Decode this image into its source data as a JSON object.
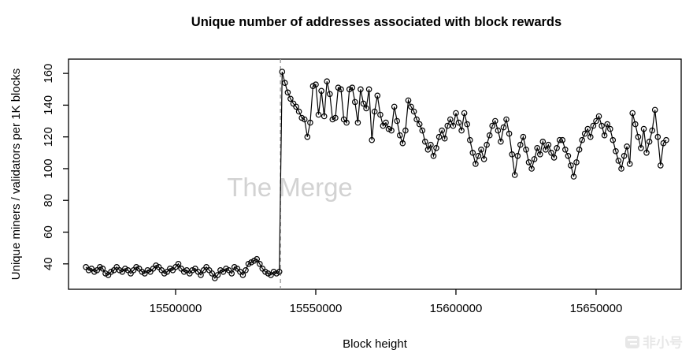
{
  "title": "Unique number of addresses associated with block rewards",
  "watermark": "The Merge",
  "brand": {
    "text": "非小号",
    "logo": "feixiaohao-logo",
    "color": "#e7e7e7"
  },
  "chart_data": {
    "type": "line",
    "title": "Unique number of addresses associated with block rewards",
    "xlabel": "Block height",
    "ylabel": "Unique miners / validators per 1K blocks",
    "marker": "open-circle",
    "grid": false,
    "legend": false,
    "xlim": [
      15461800,
      15680350
    ],
    "ylim": [
      24,
      169
    ],
    "x_tick_values": [
      15500000,
      15550000,
      15600000,
      15650000
    ],
    "x_tick_labels": [
      "15500000",
      "15550000",
      "15600000",
      "15650000"
    ],
    "y_tick_values": [
      40,
      60,
      80,
      100,
      120,
      140,
      160
    ],
    "y_tick_labels": [
      "40",
      "60",
      "80",
      "100",
      "120",
      "140",
      "160"
    ],
    "vline_x": 15537400,
    "vline_style": "dashed",
    "colors": {
      "series": "#000000",
      "vline": "#9a9a9a",
      "watermark": "#d2d2d2"
    },
    "x_start": 15468000,
    "x_step": 1000,
    "values": [
      38,
      36,
      37,
      35,
      36,
      38,
      37,
      34,
      33,
      35,
      36,
      38,
      36,
      35,
      37,
      36,
      34,
      36,
      38,
      37,
      35,
      34,
      36,
      35,
      37,
      39,
      38,
      36,
      34,
      35,
      37,
      36,
      38,
      40,
      37,
      35,
      36,
      34,
      36,
      37,
      35,
      33,
      36,
      38,
      36,
      34,
      31,
      33,
      36,
      35,
      37,
      36,
      34,
      38,
      37,
      35,
      33,
      36,
      40,
      41,
      42,
      43,
      40,
      37,
      35,
      34,
      33,
      35,
      34,
      35,
      161,
      154,
      148,
      144,
      141,
      139,
      136,
      132,
      131,
      120,
      129,
      152,
      153,
      134,
      149,
      133,
      155,
      147,
      131,
      132,
      151,
      150,
      131,
      129,
      150,
      151,
      142,
      129,
      150,
      141,
      138,
      150,
      118,
      136,
      146,
      134,
      127,
      129,
      125,
      124,
      139,
      130,
      121,
      116,
      124,
      143,
      139,
      136,
      131,
      128,
      124,
      117,
      112,
      115,
      108,
      113,
      120,
      124,
      119,
      127,
      131,
      127,
      135,
      129,
      124,
      135,
      128,
      118,
      110,
      103,
      108,
      112,
      106,
      115,
      121,
      127,
      130,
      124,
      117,
      126,
      131,
      122,
      109,
      96,
      108,
      115,
      120,
      112,
      104,
      100,
      106,
      113,
      109,
      117,
      112,
      115,
      110,
      107,
      113,
      118,
      118,
      112,
      108,
      102,
      95,
      104,
      112,
      118,
      122,
      125,
      120,
      127,
      130,
      133,
      127,
      121,
      128,
      125,
      118,
      111,
      105,
      100,
      108,
      114,
      103,
      135,
      128,
      120,
      113,
      125,
      110,
      117,
      124,
      137,
      120,
      102,
      116,
      118
    ]
  }
}
